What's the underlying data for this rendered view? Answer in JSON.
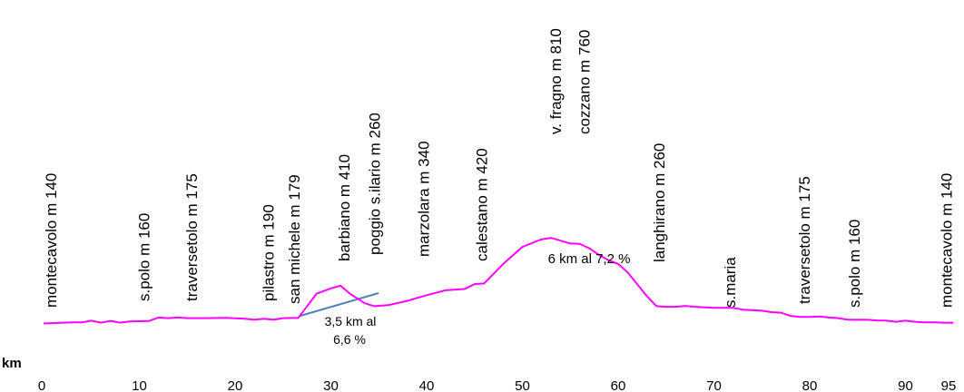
{
  "chart_data": {
    "type": "line",
    "xlabel": "km",
    "x_ticks": [
      "0",
      "10",
      "20",
      "30",
      "40",
      "50",
      "60",
      "70",
      "80",
      "90",
      "95"
    ],
    "series_color": "#ff00ff",
    "gradient_line_color": "#4f81bd",
    "profile": [
      [
        0,
        140
      ],
      [
        2,
        143
      ],
      [
        3,
        144
      ],
      [
        4,
        144
      ],
      [
        5,
        150
      ],
      [
        6,
        143
      ],
      [
        7,
        149
      ],
      [
        8,
        143
      ],
      [
        9,
        147
      ],
      [
        10,
        148
      ],
      [
        11,
        149
      ],
      [
        12,
        161
      ],
      [
        13,
        159
      ],
      [
        14,
        161
      ],
      [
        15,
        159
      ],
      [
        17,
        159
      ],
      [
        19,
        160
      ],
      [
        21,
        157
      ],
      [
        22,
        153
      ],
      [
        23,
        157
      ],
      [
        24,
        153
      ],
      [
        25,
        159
      ],
      [
        26.6,
        160
      ],
      [
        27.5,
        200
      ],
      [
        28.5,
        245
      ],
      [
        30,
        264
      ],
      [
        31,
        273
      ],
      [
        32,
        245
      ],
      [
        33.5,
        212
      ],
      [
        34.5,
        201
      ],
      [
        36,
        205
      ],
      [
        38,
        220
      ],
      [
        40,
        240
      ],
      [
        42,
        257
      ],
      [
        44,
        262
      ],
      [
        45,
        279
      ],
      [
        46,
        281
      ],
      [
        48,
        350
      ],
      [
        50,
        410
      ],
      [
        52,
        437
      ],
      [
        53,
        442
      ],
      [
        55,
        422
      ],
      [
        56,
        421
      ],
      [
        57,
        405
      ],
      [
        58,
        382
      ],
      [
        59,
        363
      ],
      [
        60,
        350
      ],
      [
        61,
        320
      ],
      [
        62,
        278
      ],
      [
        63,
        236
      ],
      [
        64,
        201
      ],
      [
        65,
        199
      ],
      [
        66,
        199
      ],
      [
        67,
        202
      ],
      [
        68,
        199
      ],
      [
        70,
        195
      ],
      [
        72,
        195
      ],
      [
        73,
        189
      ],
      [
        75,
        185
      ],
      [
        76,
        180
      ],
      [
        77,
        178
      ],
      [
        78,
        167
      ],
      [
        79,
        163
      ],
      [
        80,
        163
      ],
      [
        81,
        165
      ],
      [
        82,
        161
      ],
      [
        83,
        159
      ],
      [
        84,
        153
      ],
      [
        85,
        153
      ],
      [
        86,
        153
      ],
      [
        87,
        151
      ],
      [
        88,
        150
      ],
      [
        89,
        146
      ],
      [
        90,
        150
      ],
      [
        91,
        146
      ],
      [
        92,
        144
      ],
      [
        93,
        144
      ],
      [
        94,
        143
      ],
      [
        95,
        143
      ]
    ],
    "places": [
      {
        "label": "montecavolo m 140",
        "km": 0.8
      },
      {
        "label": "s.polo  m 160",
        "km": 10.5
      },
      {
        "label": "traversetolo  m 175",
        "km": 15.5
      },
      {
        "label": "pilastro m 190",
        "km": 23.5
      },
      {
        "label": "san michele m 179",
        "km": 26.2
      },
      {
        "label": "barbiano m 410",
        "km": 31.4
      },
      {
        "label": "poggio s.ilario m 260",
        "km": 34.6
      },
      {
        "label": "marzolara m 340",
        "km": 39.7
      },
      {
        "label": "calestano m 420",
        "km": 45.8
      },
      {
        "label": "v. fragno m 810",
        "km": 53.5
      },
      {
        "label": "cozzano m 760",
        "km": 56.5
      },
      {
        "label": "langhirano  m 260",
        "km": 64.3
      },
      {
        "label": "s.maria",
        "km": 71.7
      },
      {
        "label": "traversetolo  m 175",
        "km": 79.5
      },
      {
        "label": "s.polo  m 160",
        "km": 84.7
      },
      {
        "label": "montecavolo m 140",
        "km": 94.3
      }
    ],
    "annotations": [
      {
        "lines": [
          "3,5 km al",
          "6,6 %"
        ]
      },
      {
        "lines": [
          "6 km al 7,2 %"
        ]
      }
    ]
  }
}
